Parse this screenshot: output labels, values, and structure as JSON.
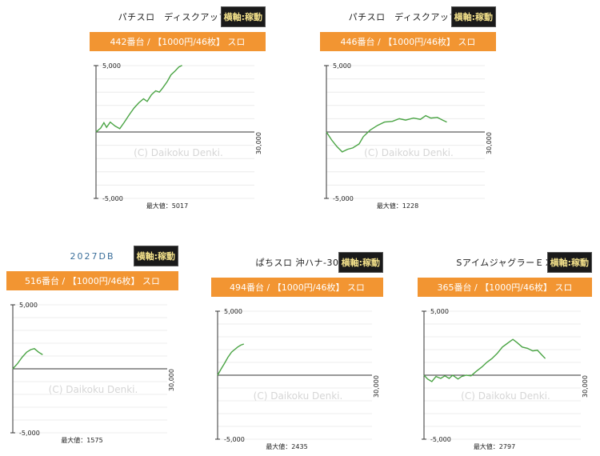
{
  "header_badge": "横軸:稼動",
  "watermark": "(C) Daikoku Denki.",
  "x_axis_label": "30,000",
  "y_top_label": "5,000",
  "y_bottom_label": "-5,000",
  "max_label_prefix": "最大値：",
  "line_color": "#4aa444",
  "bar_color": "#f29532",
  "machines": [
    {
      "title": "パチスロ　ディスクアップ…",
      "info": "442番台 / 【1000円/46枚】 スロ",
      "max": "5017"
    },
    {
      "title": "パチスロ　ディスクアップ…",
      "info": "446番台 / 【1000円/46枚】 スロ",
      "max": "1228"
    },
    {
      "title": "2027DB",
      "info": "516番台 / 【1000円/46枚】 スロ",
      "max": "1575"
    },
    {
      "title": "ぱちスロ 沖ハナ-30",
      "info": "494番台 / 【1000円/46枚】 スロ",
      "max": "2435"
    },
    {
      "title": "SアイムジャグラーＥＸ",
      "info": "365番台 / 【1000円/46枚】 スロ",
      "max": "2797"
    }
  ],
  "chart_data": [
    {
      "type": "line",
      "x_unit": "games",
      "xlim": [
        0,
        30000
      ],
      "ylim": [
        -5000,
        5000
      ],
      "series": [
        {
          "values": [
            [
              0,
              0
            ],
            [
              900,
              300
            ],
            [
              1500,
              700
            ],
            [
              2000,
              350
            ],
            [
              2700,
              750
            ],
            [
              3600,
              450
            ],
            [
              4500,
              250
            ],
            [
              5300,
              700
            ],
            [
              6300,
              1300
            ],
            [
              7200,
              1800
            ],
            [
              8100,
              2200
            ],
            [
              9000,
              2500
            ],
            [
              9700,
              2300
            ],
            [
              10500,
              2800
            ],
            [
              11300,
              3100
            ],
            [
              12000,
              3000
            ],
            [
              12600,
              3300
            ],
            [
              13500,
              3800
            ],
            [
              14200,
              4300
            ],
            [
              15000,
              4600
            ],
            [
              15700,
              4900
            ],
            [
              16300,
              5017
            ]
          ]
        }
      ]
    },
    {
      "type": "line",
      "x_unit": "games",
      "xlim": [
        0,
        30000
      ],
      "ylim": [
        -5000,
        5000
      ],
      "series": [
        {
          "values": [
            [
              0,
              0
            ],
            [
              1000,
              -600
            ],
            [
              2000,
              -1100
            ],
            [
              3000,
              -1500
            ],
            [
              4000,
              -1300
            ],
            [
              5000,
              -1200
            ],
            [
              6200,
              -900
            ],
            [
              7000,
              -350
            ],
            [
              8300,
              150
            ],
            [
              9700,
              500
            ],
            [
              11000,
              750
            ],
            [
              12500,
              800
            ],
            [
              13800,
              1000
            ],
            [
              15000,
              900
            ],
            [
              16500,
              1050
            ],
            [
              17800,
              950
            ],
            [
              18800,
              1228
            ],
            [
              19800,
              1050
            ],
            [
              21000,
              1100
            ],
            [
              22000,
              900
            ],
            [
              22800,
              750
            ]
          ]
        }
      ]
    },
    {
      "type": "line",
      "x_unit": "games",
      "xlim": [
        0,
        30000
      ],
      "ylim": [
        -5000,
        5000
      ],
      "series": [
        {
          "values": [
            [
              0,
              0
            ],
            [
              900,
              400
            ],
            [
              1800,
              900
            ],
            [
              2700,
              1300
            ],
            [
              3500,
              1500
            ],
            [
              4200,
              1575
            ],
            [
              5000,
              1300
            ],
            [
              5800,
              1100
            ]
          ]
        }
      ]
    },
    {
      "type": "line",
      "x_unit": "games",
      "xlim": [
        0,
        30000
      ],
      "ylim": [
        -5000,
        5000
      ],
      "series": [
        {
          "values": [
            [
              0,
              0
            ],
            [
              700,
              500
            ],
            [
              1300,
              900
            ],
            [
              2000,
              1400
            ],
            [
              2700,
              1800
            ],
            [
              3300,
              2000
            ],
            [
              3900,
              2200
            ],
            [
              4500,
              2350
            ],
            [
              5100,
              2435
            ]
          ]
        }
      ]
    },
    {
      "type": "line",
      "x_unit": "games",
      "xlim": [
        0,
        30000
      ],
      "ylim": [
        -5000,
        5000
      ],
      "series": [
        {
          "values": [
            [
              0,
              0
            ],
            [
              700,
              -300
            ],
            [
              1500,
              -500
            ],
            [
              2300,
              -100
            ],
            [
              3200,
              -250
            ],
            [
              4000,
              -50
            ],
            [
              4800,
              -250
            ],
            [
              5500,
              0
            ],
            [
              6500,
              -300
            ],
            [
              7200,
              -100
            ],
            [
              8100,
              0
            ],
            [
              9000,
              -50
            ],
            [
              10000,
              300
            ],
            [
              11100,
              650
            ],
            [
              12000,
              1000
            ],
            [
              13000,
              1300
            ],
            [
              14000,
              1700
            ],
            [
              15000,
              2200
            ],
            [
              16000,
              2500
            ],
            [
              17000,
              2797
            ],
            [
              17800,
              2550
            ],
            [
              18800,
              2200
            ],
            [
              19800,
              2100
            ],
            [
              20800,
              1900
            ],
            [
              21700,
              1950
            ],
            [
              22500,
              1600
            ],
            [
              23200,
              1300
            ]
          ]
        }
      ]
    }
  ]
}
